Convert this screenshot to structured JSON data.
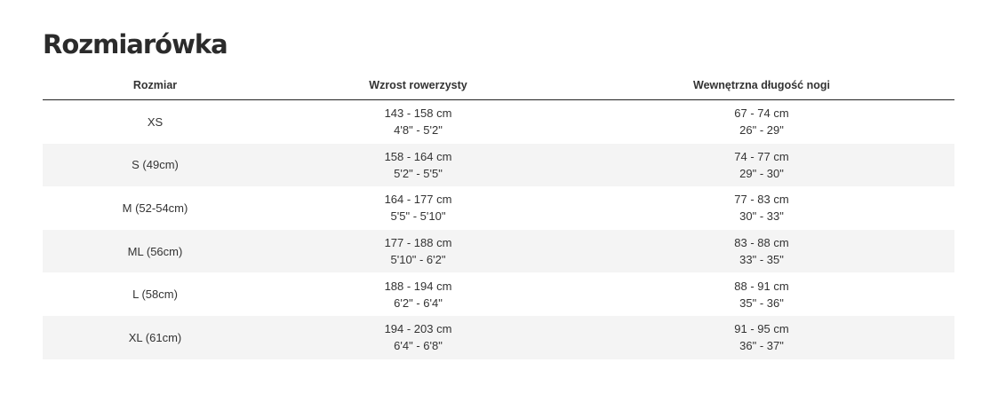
{
  "title": "Rozmiarówka",
  "headers": [
    "Rozmiar",
    "Wzrost rowerzysty",
    "Wewnętrzna długość nogi"
  ],
  "rows": [
    {
      "size": "XS",
      "height_cm": "143 - 158 cm",
      "height_in": "4'8\" - 5'2\"",
      "leg_cm": "67 - 74 cm",
      "leg_in": "26\" - 29\""
    },
    {
      "size": "S (49cm)",
      "height_cm": "158 - 164 cm",
      "height_in": "5'2\" - 5'5\"",
      "leg_cm": "74 - 77 cm",
      "leg_in": "29\" - 30\""
    },
    {
      "size": "M (52-54cm)",
      "height_cm": "164 - 177 cm",
      "height_in": "5'5\" - 5'10\"",
      "leg_cm": "77 - 83 cm",
      "leg_in": "30\" - 33\""
    },
    {
      "size": "ML (56cm)",
      "height_cm": "177 - 188 cm",
      "height_in": "5'10\" - 6'2\"",
      "leg_cm": "83 - 88 cm",
      "leg_in": "33\" - 35\""
    },
    {
      "size": "L (58cm)",
      "height_cm": "188 - 194 cm",
      "height_in": "6'2\" - 6'4\"",
      "leg_cm": "88 - 91 cm",
      "leg_in": "35\" - 36\""
    },
    {
      "size": "XL (61cm)",
      "height_cm": "194 - 203 cm",
      "height_in": "6'4\" - 6'8\"",
      "leg_cm": "91 - 95 cm",
      "leg_in": "36\" - 37\""
    }
  ]
}
